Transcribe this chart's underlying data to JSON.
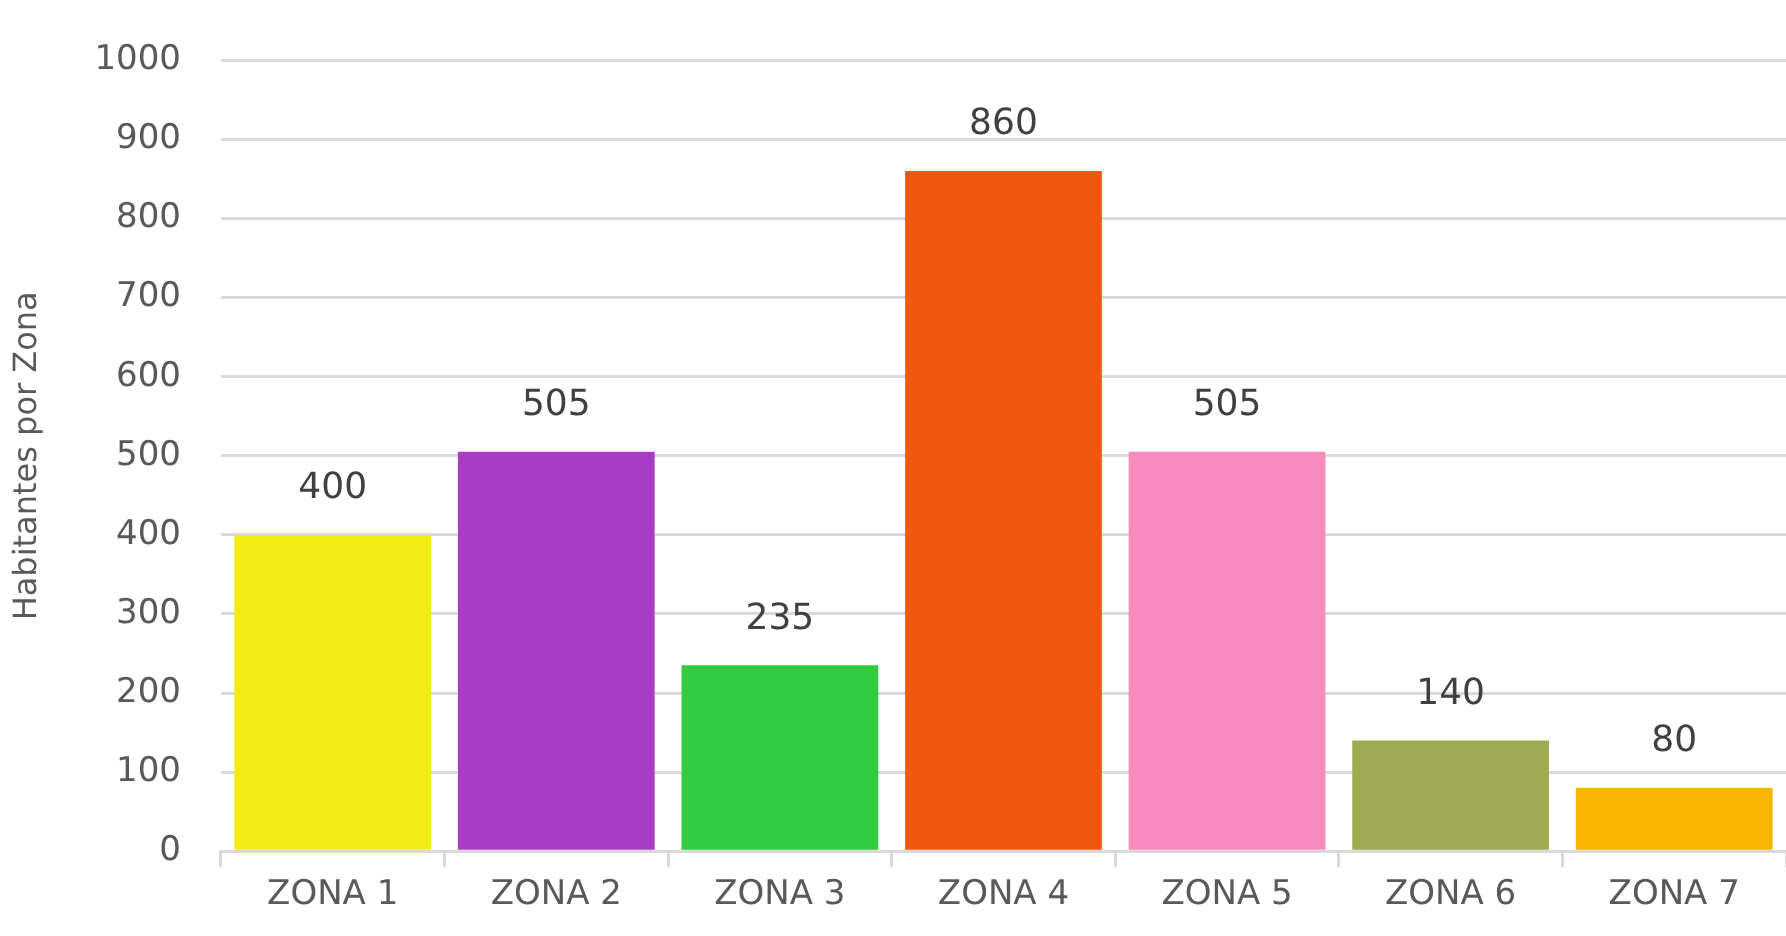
{
  "chart_data": {
    "type": "bar",
    "ylabel": "Habitantes por Zona",
    "categories": [
      "ZONA 1",
      "ZONA 2",
      "ZONA 3",
      "ZONA 4",
      "ZONA 5",
      "ZONA 6",
      "ZONA 7"
    ],
    "values": [
      400,
      505,
      235,
      860,
      505,
      140,
      80
    ],
    "colors": [
      "#f0ec14",
      "#a93cc4",
      "#33cc40",
      "#f2570f",
      "#f78bbd",
      "#9fab52",
      "#f8b500"
    ],
    "ylim": [
      0,
      1000
    ],
    "yticks": [
      0,
      100,
      200,
      300,
      400,
      500,
      600,
      700,
      800,
      900,
      1000
    ],
    "grid": "y",
    "data_labels": true
  }
}
